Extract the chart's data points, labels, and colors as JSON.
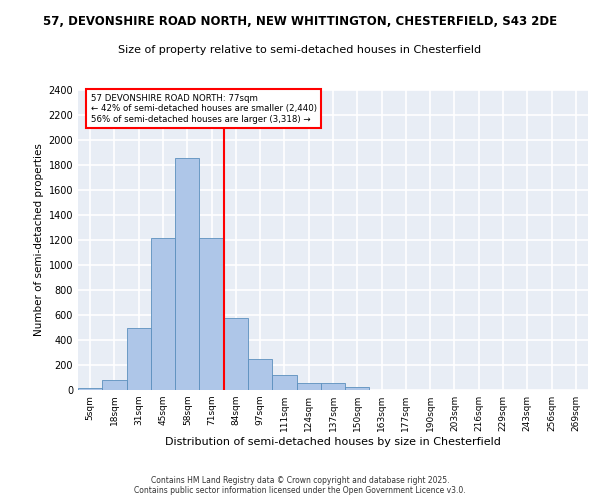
{
  "title_line1": "57, DEVONSHIRE ROAD NORTH, NEW WHITTINGTON, CHESTERFIELD, S43 2DE",
  "title_line2": "Size of property relative to semi-detached houses in Chesterfield",
  "xlabel": "Distribution of semi-detached houses by size in Chesterfield",
  "ylabel": "Number of semi-detached properties",
  "property_label": "57 DEVONSHIRE ROAD NORTH: 77sqm",
  "pct_smaller": 42,
  "pct_larger": 56,
  "n_smaller": 2440,
  "n_larger": 3318,
  "bin_labels": [
    "5sqm",
    "18sqm",
    "31sqm",
    "45sqm",
    "58sqm",
    "71sqm",
    "84sqm",
    "97sqm",
    "111sqm",
    "124sqm",
    "137sqm",
    "150sqm",
    "163sqm",
    "177sqm",
    "190sqm",
    "203sqm",
    "216sqm",
    "229sqm",
    "243sqm",
    "256sqm",
    "269sqm"
  ],
  "bar_values": [
    15,
    80,
    500,
    1220,
    1860,
    1220,
    580,
    245,
    120,
    55,
    55,
    25,
    0,
    0,
    0,
    0,
    0,
    0,
    0,
    0,
    0
  ],
  "bar_color": "#aec6e8",
  "bar_edge_color": "#5b8fbe",
  "vline_color": "red",
  "vline_x_index": 5,
  "annotation_box_color": "red",
  "background_color": "#e8edf5",
  "grid_color": "white",
  "ylim": [
    0,
    2400
  ],
  "yticks": [
    0,
    200,
    400,
    600,
    800,
    1000,
    1200,
    1400,
    1600,
    1800,
    2000,
    2200,
    2400
  ],
  "footer_line1": "Contains HM Land Registry data © Crown copyright and database right 2025.",
  "footer_line2": "Contains public sector information licensed under the Open Government Licence v3.0."
}
